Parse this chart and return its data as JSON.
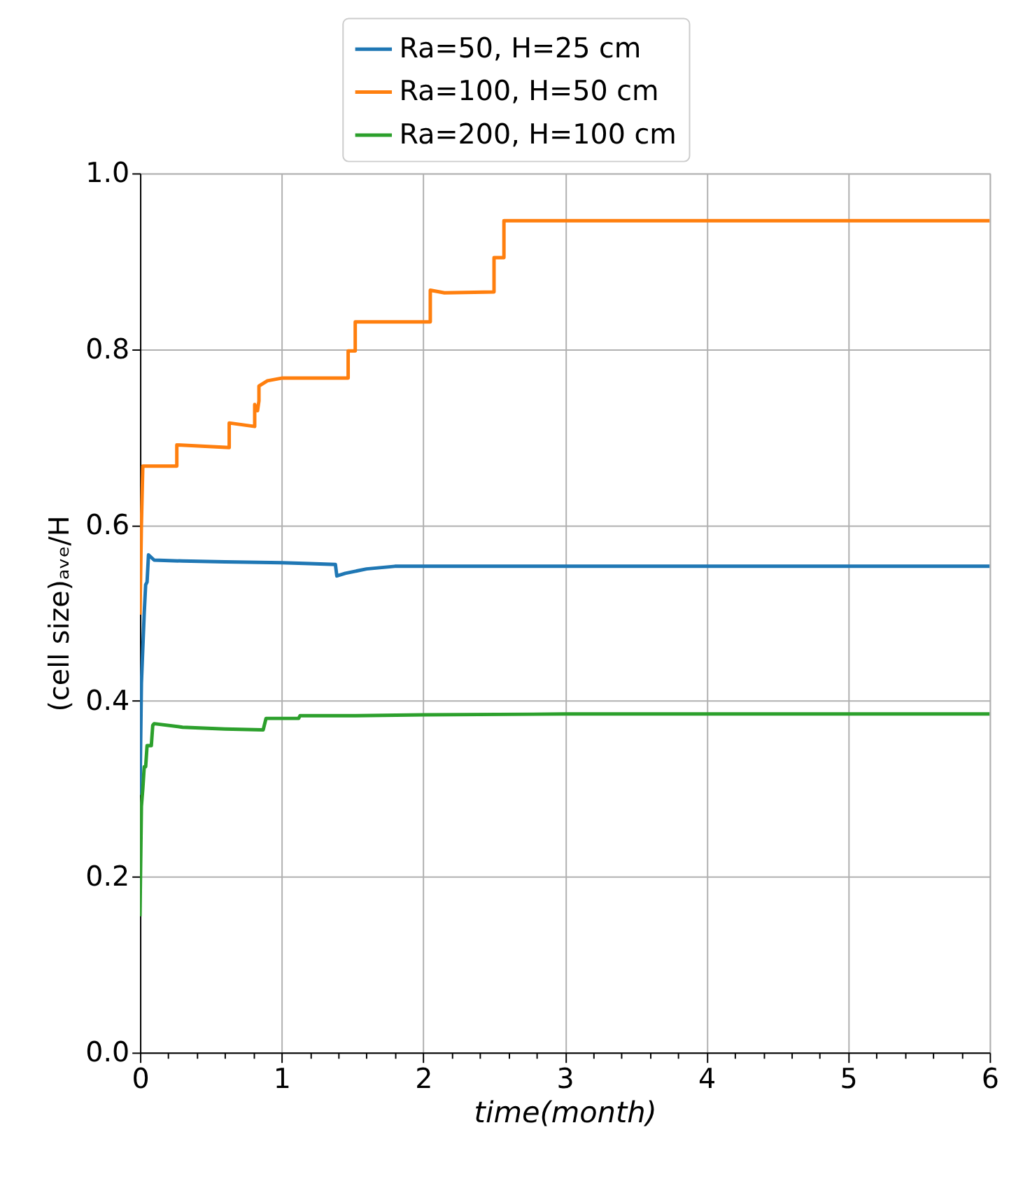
{
  "chart_data": {
    "type": "line",
    "xlabel": "time(month)",
    "ylabel": "(cell size)ₐᵥₑ/H",
    "xlim": [
      0,
      6
    ],
    "ylim": [
      0,
      1.0
    ],
    "xticks": [
      0,
      {
        "value": 0.2,
        "label": null
      },
      {
        "value": 0.4,
        "label": null
      },
      {
        "value": 0.6,
        "label": null
      },
      {
        "value": 0.8,
        "label": null
      },
      1,
      {
        "value": 1.2,
        "label": null
      },
      {
        "value": 1.4,
        "label": null
      },
      {
        "value": 1.6,
        "label": null
      },
      {
        "value": 1.8,
        "label": null
      },
      2,
      {
        "value": 2.2,
        "label": null
      },
      {
        "value": 2.4,
        "label": null
      },
      {
        "value": 2.6,
        "label": null
      },
      {
        "value": 2.8,
        "label": null
      },
      3,
      {
        "value": 3.2,
        "label": null
      },
      {
        "value": 3.4,
        "label": null
      },
      {
        "value": 3.6,
        "label": null
      },
      {
        "value": 3.8,
        "label": null
      },
      4,
      {
        "value": 4.2,
        "label": null
      },
      {
        "value": 4.4,
        "label": null
      },
      {
        "value": 4.6,
        "label": null
      },
      {
        "value": 4.8,
        "label": null
      },
      5,
      {
        "value": 5.2,
        "label": null
      },
      {
        "value": 5.4,
        "label": null
      },
      {
        "value": 5.6,
        "label": null
      },
      {
        "value": 5.8,
        "label": null
      },
      6
    ],
    "yticks": [
      {
        "value": 0,
        "label": "0.0"
      },
      0.2,
      0.4,
      0.6,
      0.8,
      {
        "value": 1,
        "label": "1.0"
      }
    ],
    "grid": true,
    "legend": "top",
    "line_style": "solid",
    "marker": "none",
    "series": [
      {
        "name": "Ra=50, H=25 cm",
        "color": "#1f77b4",
        "x": [
          0,
          0.01,
          0.03,
          0.04,
          0.05,
          0.06,
          0.1,
          0.3,
          0.6,
          1.0,
          1.2,
          1.38,
          1.39,
          1.45,
          1.6,
          1.8,
          2.0,
          3.0,
          4.0,
          5.0,
          6.0
        ],
        "values": [
          0.293,
          0.42,
          0.5,
          0.532,
          0.535,
          0.566,
          0.56,
          0.559,
          0.558,
          0.557,
          0.556,
          0.555,
          0.542,
          0.545,
          0.55,
          0.553,
          0.553,
          0.553,
          0.553,
          0.553,
          0.553
        ]
      },
      {
        "name": "Ra=100, H=50 cm",
        "color": "#ff7f0e",
        "x": [
          0,
          0.01,
          0.02,
          0.26,
          0.26,
          0.63,
          0.63,
          0.81,
          0.81,
          0.83,
          0.84,
          0.84,
          0.9,
          1.0,
          1.2,
          1.47,
          1.47,
          1.52,
          1.52,
          2.05,
          2.05,
          2.15,
          2.5,
          2.5,
          2.57,
          2.57,
          3.0,
          4.0,
          5.0,
          6.0
        ],
        "values": [
          0.498,
          0.6,
          0.667,
          0.667,
          0.691,
          0.688,
          0.716,
          0.712,
          0.737,
          0.73,
          0.741,
          0.758,
          0.764,
          0.767,
          0.767,
          0.767,
          0.798,
          0.798,
          0.831,
          0.831,
          0.867,
          0.864,
          0.865,
          0.904,
          0.904,
          0.946,
          0.946,
          0.946,
          0.946,
          0.946
        ]
      },
      {
        "name": "Ra=200, H=100 cm",
        "color": "#2ca02c",
        "x": [
          0,
          0.01,
          0.02,
          0.03,
          0.04,
          0.05,
          0.08,
          0.09,
          0.1,
          0.3,
          0.6,
          0.87,
          0.89,
          1.12,
          1.13,
          1.5,
          2.0,
          3.0,
          4.0,
          5.0,
          6.0
        ],
        "values": [
          0.155,
          0.28,
          0.3,
          0.325,
          0.325,
          0.349,
          0.349,
          0.372,
          0.374,
          0.37,
          0.368,
          0.367,
          0.38,
          0.38,
          0.383,
          0.383,
          0.384,
          0.385,
          0.385,
          0.385,
          0.385
        ]
      }
    ]
  }
}
